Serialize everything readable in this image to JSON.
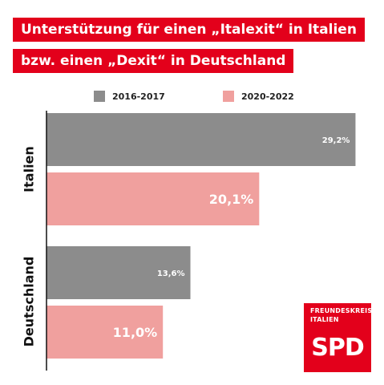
{
  "header": {
    "title_line1": "Unterstützung für einen „Italexit“ in Italien",
    "title_line2": "bzw. einen „Dexit“ in Deutschland"
  },
  "logo": {
    "line1": "FREUNDESKREIS",
    "line2": "ITALIEN",
    "text": "SPD"
  },
  "colors": {
    "brand_red": "#e3001b",
    "series_2016": "#8c8c8c",
    "series_2020": "#f0a09e"
  },
  "chart_data": {
    "type": "bar",
    "orientation": "horizontal",
    "title": "Unterstützung für einen „Italexit“ in Italien bzw. einen „Dexit“ in Deutschland",
    "categories": [
      "Italien",
      "Deutschland"
    ],
    "series": [
      {
        "name": "2016-2017",
        "values": [
          29.2,
          13.6
        ],
        "labels": [
          "29,2%",
          "13,6%"
        ],
        "color": "#8c8c8c"
      },
      {
        "name": "2020-2022",
        "values": [
          20.1,
          11.0
        ],
        "labels": [
          "20,1%",
          "11,0%"
        ],
        "color": "#f0a09e"
      }
    ],
    "xlim": [
      0,
      30
    ],
    "grid": false,
    "legend_position": "top"
  }
}
